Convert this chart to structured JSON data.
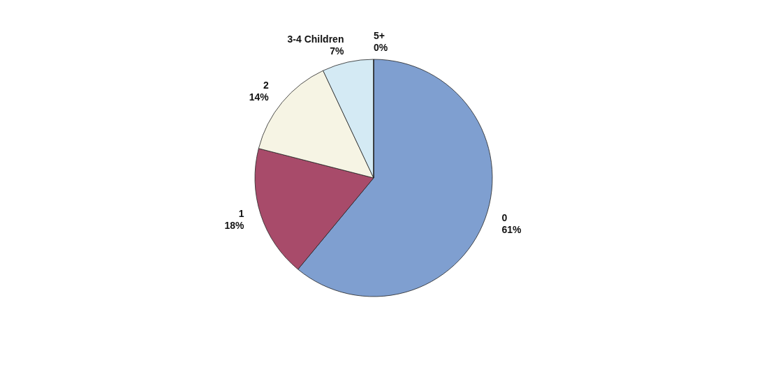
{
  "chart_data": {
    "type": "pie",
    "categories": [
      "0",
      "1",
      "2",
      "3-4 Children",
      "5+"
    ],
    "values": [
      61,
      18,
      14,
      7,
      0
    ],
    "value_labels": [
      "61%",
      "18%",
      "14%",
      "7%",
      "0%"
    ],
    "colors": [
      "#7f9fd0",
      "#a84b6a",
      "#f6f4e4",
      "#d4eaf4",
      "#333333"
    ],
    "legend": false
  }
}
